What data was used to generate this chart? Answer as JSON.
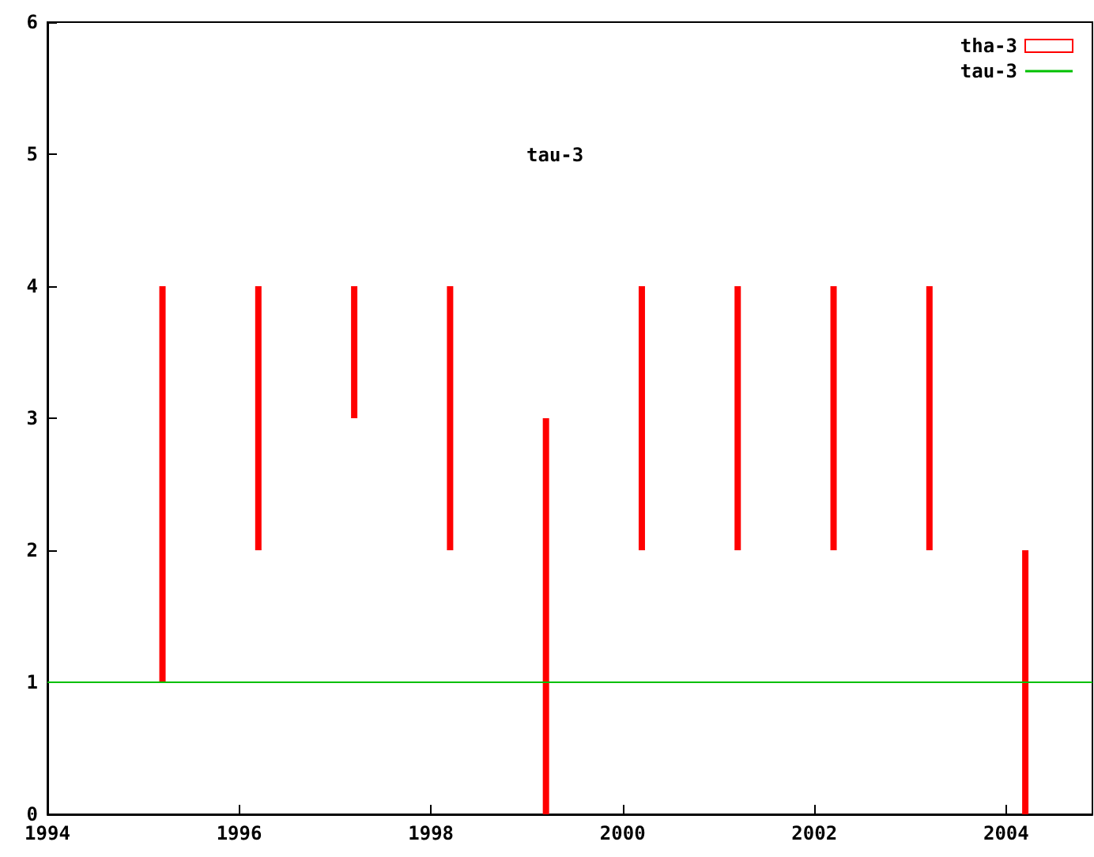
{
  "chart_data": {
    "type": "bar",
    "annotations": [
      "tau-3"
    ],
    "series": [
      {
        "name": "tha-3",
        "color": "#ff0000",
        "x": [
          1995.2,
          1996.2,
          1997.2,
          1998.2,
          1999.2,
          2000.2,
          2001.2,
          2002.2,
          2003.2,
          2004.2
        ],
        "base": [
          1,
          2,
          3,
          2,
          0,
          2,
          2,
          2,
          2,
          0
        ],
        "values": [
          3,
          2,
          1,
          2,
          3,
          2,
          2,
          2,
          2,
          2
        ]
      },
      {
        "name": "tau-3",
        "type": "line",
        "color": "#00c000",
        "x": [
          1994,
          2004.9
        ],
        "values": [
          1,
          1
        ]
      }
    ],
    "xlim": [
      1994,
      2004.9
    ],
    "xticks": [
      1994,
      1996,
      1998,
      2000,
      2002,
      2004
    ],
    "ylim": [
      0,
      6
    ],
    "yticks": [
      0,
      1,
      2,
      3,
      4,
      5,
      6
    ],
    "grid": false,
    "legend": "top right",
    "marker": "none",
    "line_style": "solid"
  }
}
